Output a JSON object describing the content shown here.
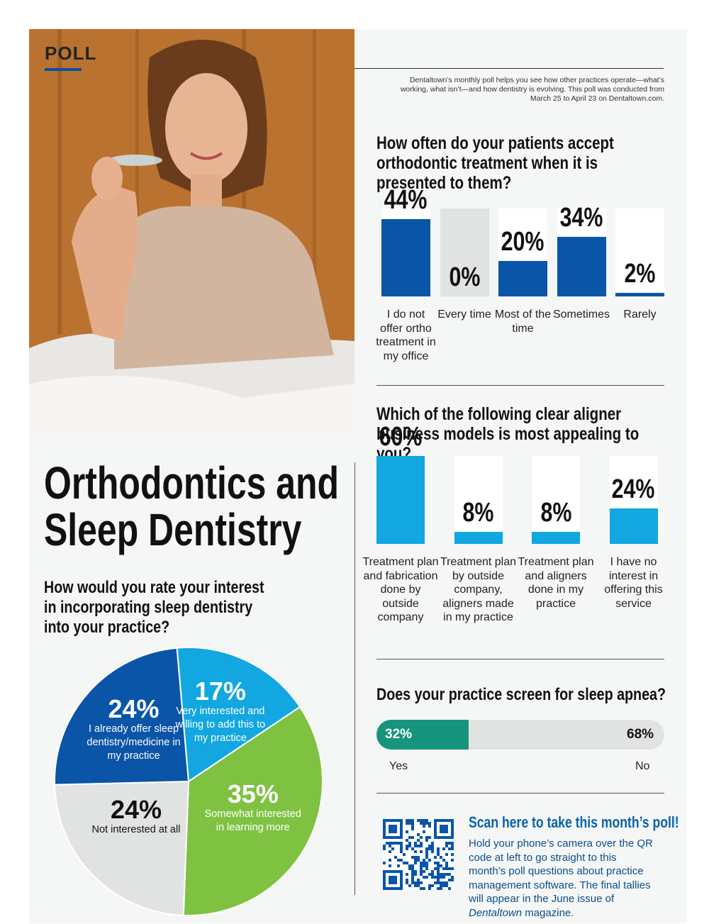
{
  "header": {
    "tag": "POLL",
    "intro": "Dentaltown’s monthly poll helps you see how other practices operate—what’s working, what isn’t—and how dentistry is evolving. This poll was conducted from March 25 to April 23 on Dentaltown.com."
  },
  "main_title_line1": "Orthodontics and",
  "main_title_line2": "Sleep Dentistry",
  "scan": {
    "title": "Scan here to take this month’s poll!",
    "text_before": "Hold your phone’s camera over the QR code at left to go straight to this month’s poll questions about practice management software. The final tallies will appear in the June issue of ",
    "magazine": "Dentaltown",
    "text_after": " magazine."
  },
  "colors": {
    "blue": "#0a55a8",
    "cyan": "#12a7e0",
    "green": "#7fc242",
    "grey": "#e1e3e3",
    "teal": "#17957c"
  },
  "chart_data": [
    {
      "type": "bar",
      "title": "How often do your patients accept orthodontic treatment when it is presented to them?",
      "categories": [
        "I do not offer ortho treatment in my office",
        "Every time",
        "Most of the time",
        "Sometimes",
        "Rarely"
      ],
      "values": [
        44,
        0,
        20,
        34,
        2
      ],
      "value_labels": [
        "44%",
        "0%",
        "20%",
        "34%",
        "2%"
      ],
      "unit": "%",
      "color": "#0a55a8"
    },
    {
      "type": "bar",
      "title": "Which of the following clear aligner business models is most appealing to you?",
      "categories": [
        "Treatment plan and fabrication done by outside company",
        "Treatment plan by outside company, aligners made in my practice",
        "Treatment plan and aligners done in my practice",
        "I have no interest in offering this service"
      ],
      "values": [
        60,
        8,
        8,
        24
      ],
      "value_labels": [
        "60%",
        "8%",
        "8%",
        "24%"
      ],
      "unit": "%",
      "color": "#12a7e0"
    },
    {
      "type": "pie",
      "title": "How would you rate your interest in incorporating sleep dentistry into your practice?",
      "slices": [
        {
          "label": "Very interested and willing to add this to my practice",
          "value": 17,
          "value_label": "17%",
          "color": "#12a7e0"
        },
        {
          "label": "Somewhat interested in learning more",
          "value": 35,
          "value_label": "35%",
          "color": "#7fc242"
        },
        {
          "label": "Not interested at all",
          "value": 24,
          "value_label": "24%",
          "color": "#e1e3e3"
        },
        {
          "label": "I already offer sleep dentistry/medicine in my practice",
          "value": 24,
          "value_label": "24%",
          "color": "#0a55a8"
        }
      ]
    },
    {
      "type": "bar",
      "orientation": "horizontal-stacked",
      "title": "Does your practice screen for sleep apnea?",
      "categories": [
        "Yes",
        "No"
      ],
      "values": [
        32,
        68
      ],
      "value_labels": [
        "32%",
        "68%"
      ],
      "unit": "%",
      "colors": [
        "#17957c",
        "#e1e3e3"
      ]
    }
  ]
}
